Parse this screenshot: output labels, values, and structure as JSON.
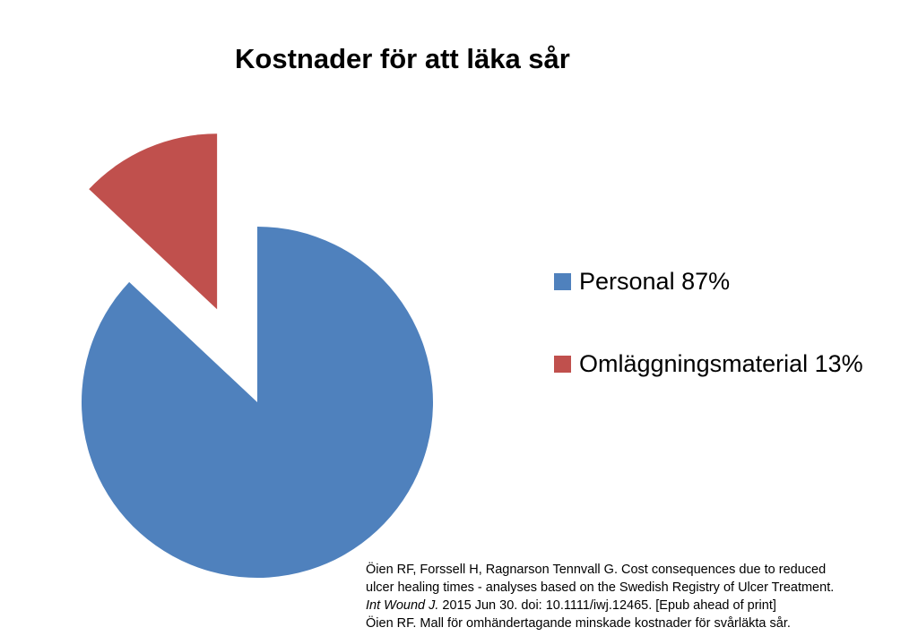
{
  "chart_data": {
    "type": "pie",
    "title": "Kostnader för att läka sår",
    "slices": [
      {
        "label": "Personal 87%",
        "value": 87,
        "color": "#4F81BD",
        "exploded": false
      },
      {
        "label": "Omläggningsmaterial 13%",
        "value": 13,
        "color": "#C0504D",
        "exploded": true
      }
    ],
    "legend_position": "right"
  },
  "citation": {
    "line1": "Öien RF, Forssell H, Ragnarson Tennvall G. Cost consequences due to reduced",
    "line2": "ulcer healing times - analyses based on the Swedish Registry of Ulcer Treatment.",
    "line3_journal": "Int Wound J.",
    "line3_rest": " 2015 Jun 30. doi: 10.1111/iwj.12465. [Epub ahead of print]",
    "line4": "Öien RF. Mall för omhändertagande minskade kostnader för svårläkta sår."
  }
}
